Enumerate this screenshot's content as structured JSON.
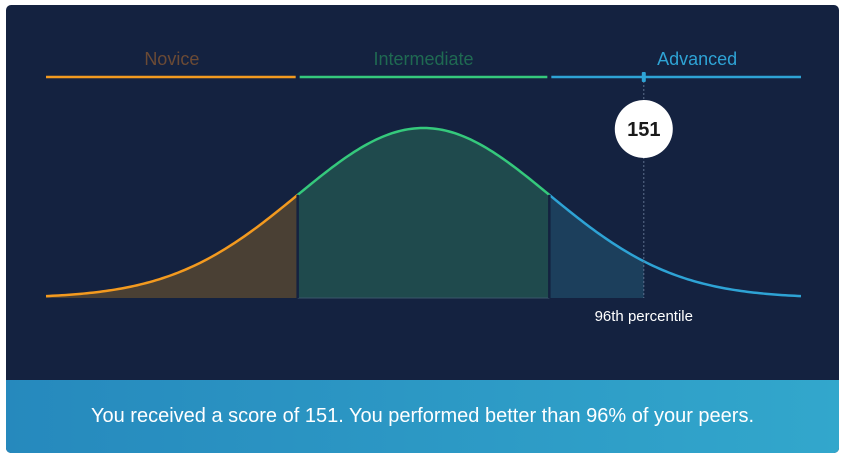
{
  "chart_data": {
    "type": "area",
    "distribution": "normal",
    "categories": [
      "Novice",
      "Intermediate",
      "Advanced"
    ],
    "category_colors": [
      "#f39a1f",
      "#35c97c",
      "#2ea3d5"
    ],
    "category_fill_colors": [
      "#4a4034",
      "#1f4a4d",
      "#1c3f5c"
    ],
    "category_label_colors": [
      "#6b4a35",
      "#1f6a52",
      "#2ea3d5"
    ],
    "score": 151,
    "score_percentile": 96,
    "marker_label": "151",
    "percentile_label": "96th percentile"
  },
  "banner": {
    "text": "You received a score of 151. You performed better than 96% of your peers."
  }
}
